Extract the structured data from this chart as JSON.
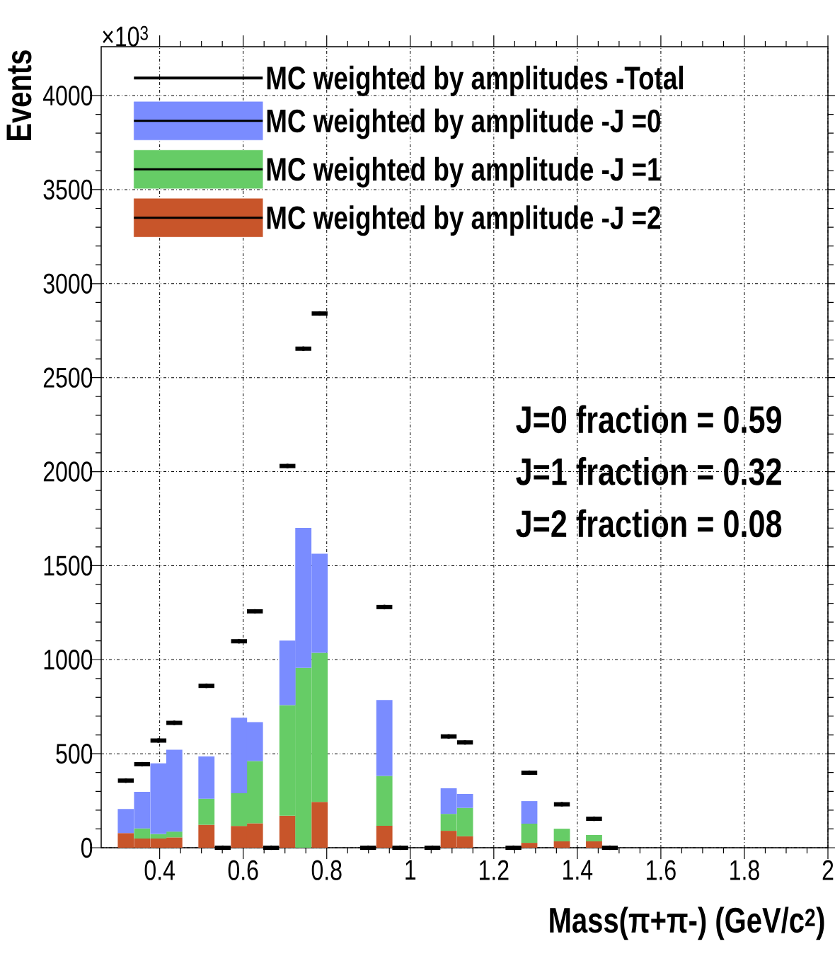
{
  "chart_data": {
    "type": "bar",
    "ylabel": "Events",
    "xlabel": "Mass(π+π-) (GeV/c$^{2}$)",
    "annotations": [
      "×10$^{3}$",
      "J=0 fraction = 0.59",
      "J=1 fraction = 0.32",
      "J=2 fraction = 0.08"
    ],
    "x": [
      0.319,
      0.358,
      0.397,
      0.435,
      0.474,
      0.512,
      0.551,
      0.59,
      0.628,
      0.667,
      0.706,
      0.744,
      0.783,
      0.822,
      0.86,
      0.899,
      0.938,
      0.976,
      1.015,
      1.053,
      1.092,
      1.131,
      1.169,
      1.208,
      1.247,
      1.285,
      1.324,
      1.363,
      1.401,
      1.44
    ],
    "stacked": true,
    "series": [
      {
        "name": "MC weighted by amplitude -J =2",
        "color": "#c8552a",
        "values": [
          78,
          49,
          49,
          55,
          null,
          122,
          null,
          116,
          130,
          null,
          170,
          null,
          244,
          null,
          null,
          null,
          117,
          null,
          null,
          null,
          90,
          61,
          null,
          null,
          null,
          26,
          null,
          34,
          null,
          34
        ]
      },
      {
        "name": "MC weighted by amplitude -J =1",
        "color": "#66cc66",
        "values": [
          null,
          54,
          24,
          31,
          null,
          139,
          null,
          174,
          331,
          null,
          588,
          957,
          793,
          null,
          null,
          null,
          265,
          null,
          null,
          null,
          90,
          151,
          null,
          null,
          null,
          102,
          null,
          67,
          null,
          34
        ]
      },
      {
        "name": "MC weighted by amplitude -J =0",
        "color": "#7a8cff",
        "values": [
          128,
          194,
          376,
          435,
          null,
          224,
          null,
          401,
          207,
          null,
          344,
          744,
          527,
          null,
          null,
          null,
          404,
          null,
          null,
          null,
          136,
          74,
          null,
          null,
          null,
          120,
          null,
          null,
          null,
          null
        ]
      },
      {
        "name": "MC weighted by amplitudes -Total",
        "type": "scatter",
        "color": "#000000",
        "x": [
          0.319,
          0.358,
          0.397,
          0.435,
          0.512,
          0.551,
          0.59,
          0.628,
          0.667,
          0.706,
          0.744,
          0.783,
          0.899,
          0.938,
          0.976,
          1.053,
          1.092,
          1.131,
          1.247,
          1.285,
          1.363,
          1.44,
          1.478
        ],
        "values": [
          357,
          444,
          570,
          664,
          861,
          0,
          1098,
          1257,
          0,
          2030,
          2654,
          2841,
          0,
          1280,
          0,
          0,
          592,
          560,
          0,
          399,
          231,
          154,
          0
        ],
        "xerrors": [
          0.019,
          0.019,
          0.019,
          0.019,
          0.019,
          0.019,
          0.019,
          0.019,
          0.019,
          0.019,
          0.019,
          0.019,
          0.019,
          0.019,
          0.019,
          0.019,
          0.019,
          0.019,
          0.019,
          0.019,
          0.019,
          0.019,
          0.019
        ]
      }
    ],
    "xlim": [
      0.26,
      2.0
    ],
    "ylim": [
      0,
      4260
    ],
    "xticks": [
      0.4,
      0.6,
      0.8,
      1,
      1.2,
      1.4,
      1.6,
      1.8,
      2
    ],
    "yticks": [
      0,
      500,
      1000,
      1500,
      2000,
      2500,
      3000,
      3500,
      4000
    ],
    "grid": true,
    "legend": "top"
  }
}
